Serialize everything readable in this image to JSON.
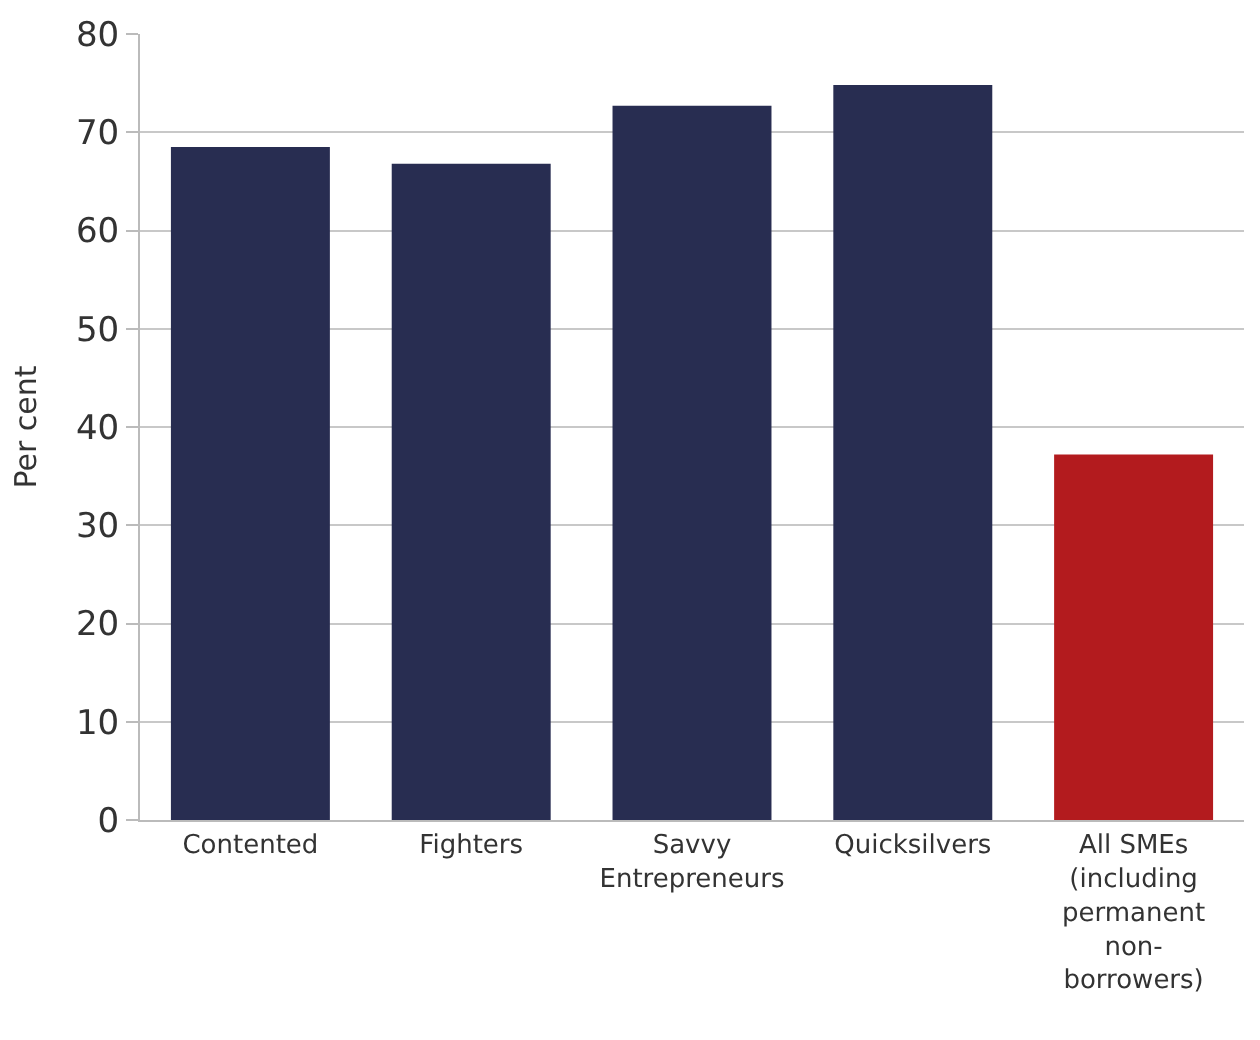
{
  "chart_data": {
    "type": "bar",
    "ylabel": "Per cent",
    "categories": [
      "Contented",
      "Fighters",
      "Savvy\nEntrepreneurs",
      "Quicksilvers",
      "All SMEs\n(including\npermanent\nnon-\nborrowers)"
    ],
    "values": [
      68.5,
      66.8,
      72.7,
      74.8,
      37.2
    ],
    "colors": [
      "#282d51",
      "#282d51",
      "#282d51",
      "#282d51",
      "#b31b1e"
    ],
    "ylim": [
      0,
      80
    ],
    "yticks": [
      0,
      10,
      20,
      30,
      40,
      50,
      60,
      70,
      80
    ],
    "grid": "y",
    "legend": false
  }
}
